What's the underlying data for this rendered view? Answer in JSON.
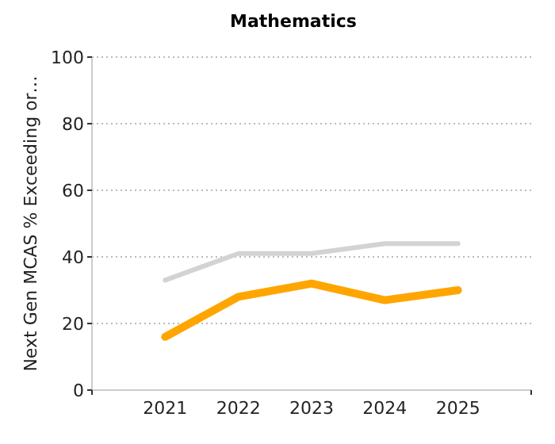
{
  "chart_data": {
    "type": "line",
    "title": "Mathematics",
    "ylabel": "Next Gen MCAS % Exceeding or…",
    "categories": [
      "2021",
      "2022",
      "2023",
      "2024",
      "2025"
    ],
    "series": [
      {
        "color": "#d3d3d3",
        "values": [
          33,
          41,
          41,
          44,
          44
        ]
      },
      {
        "color": "#ffa500",
        "values": [
          16,
          28,
          32,
          27,
          30
        ]
      }
    ],
    "ylim": [
      0,
      100
    ],
    "yticks": [
      0,
      20,
      40,
      60,
      80,
      100
    ],
    "grid": "y"
  }
}
